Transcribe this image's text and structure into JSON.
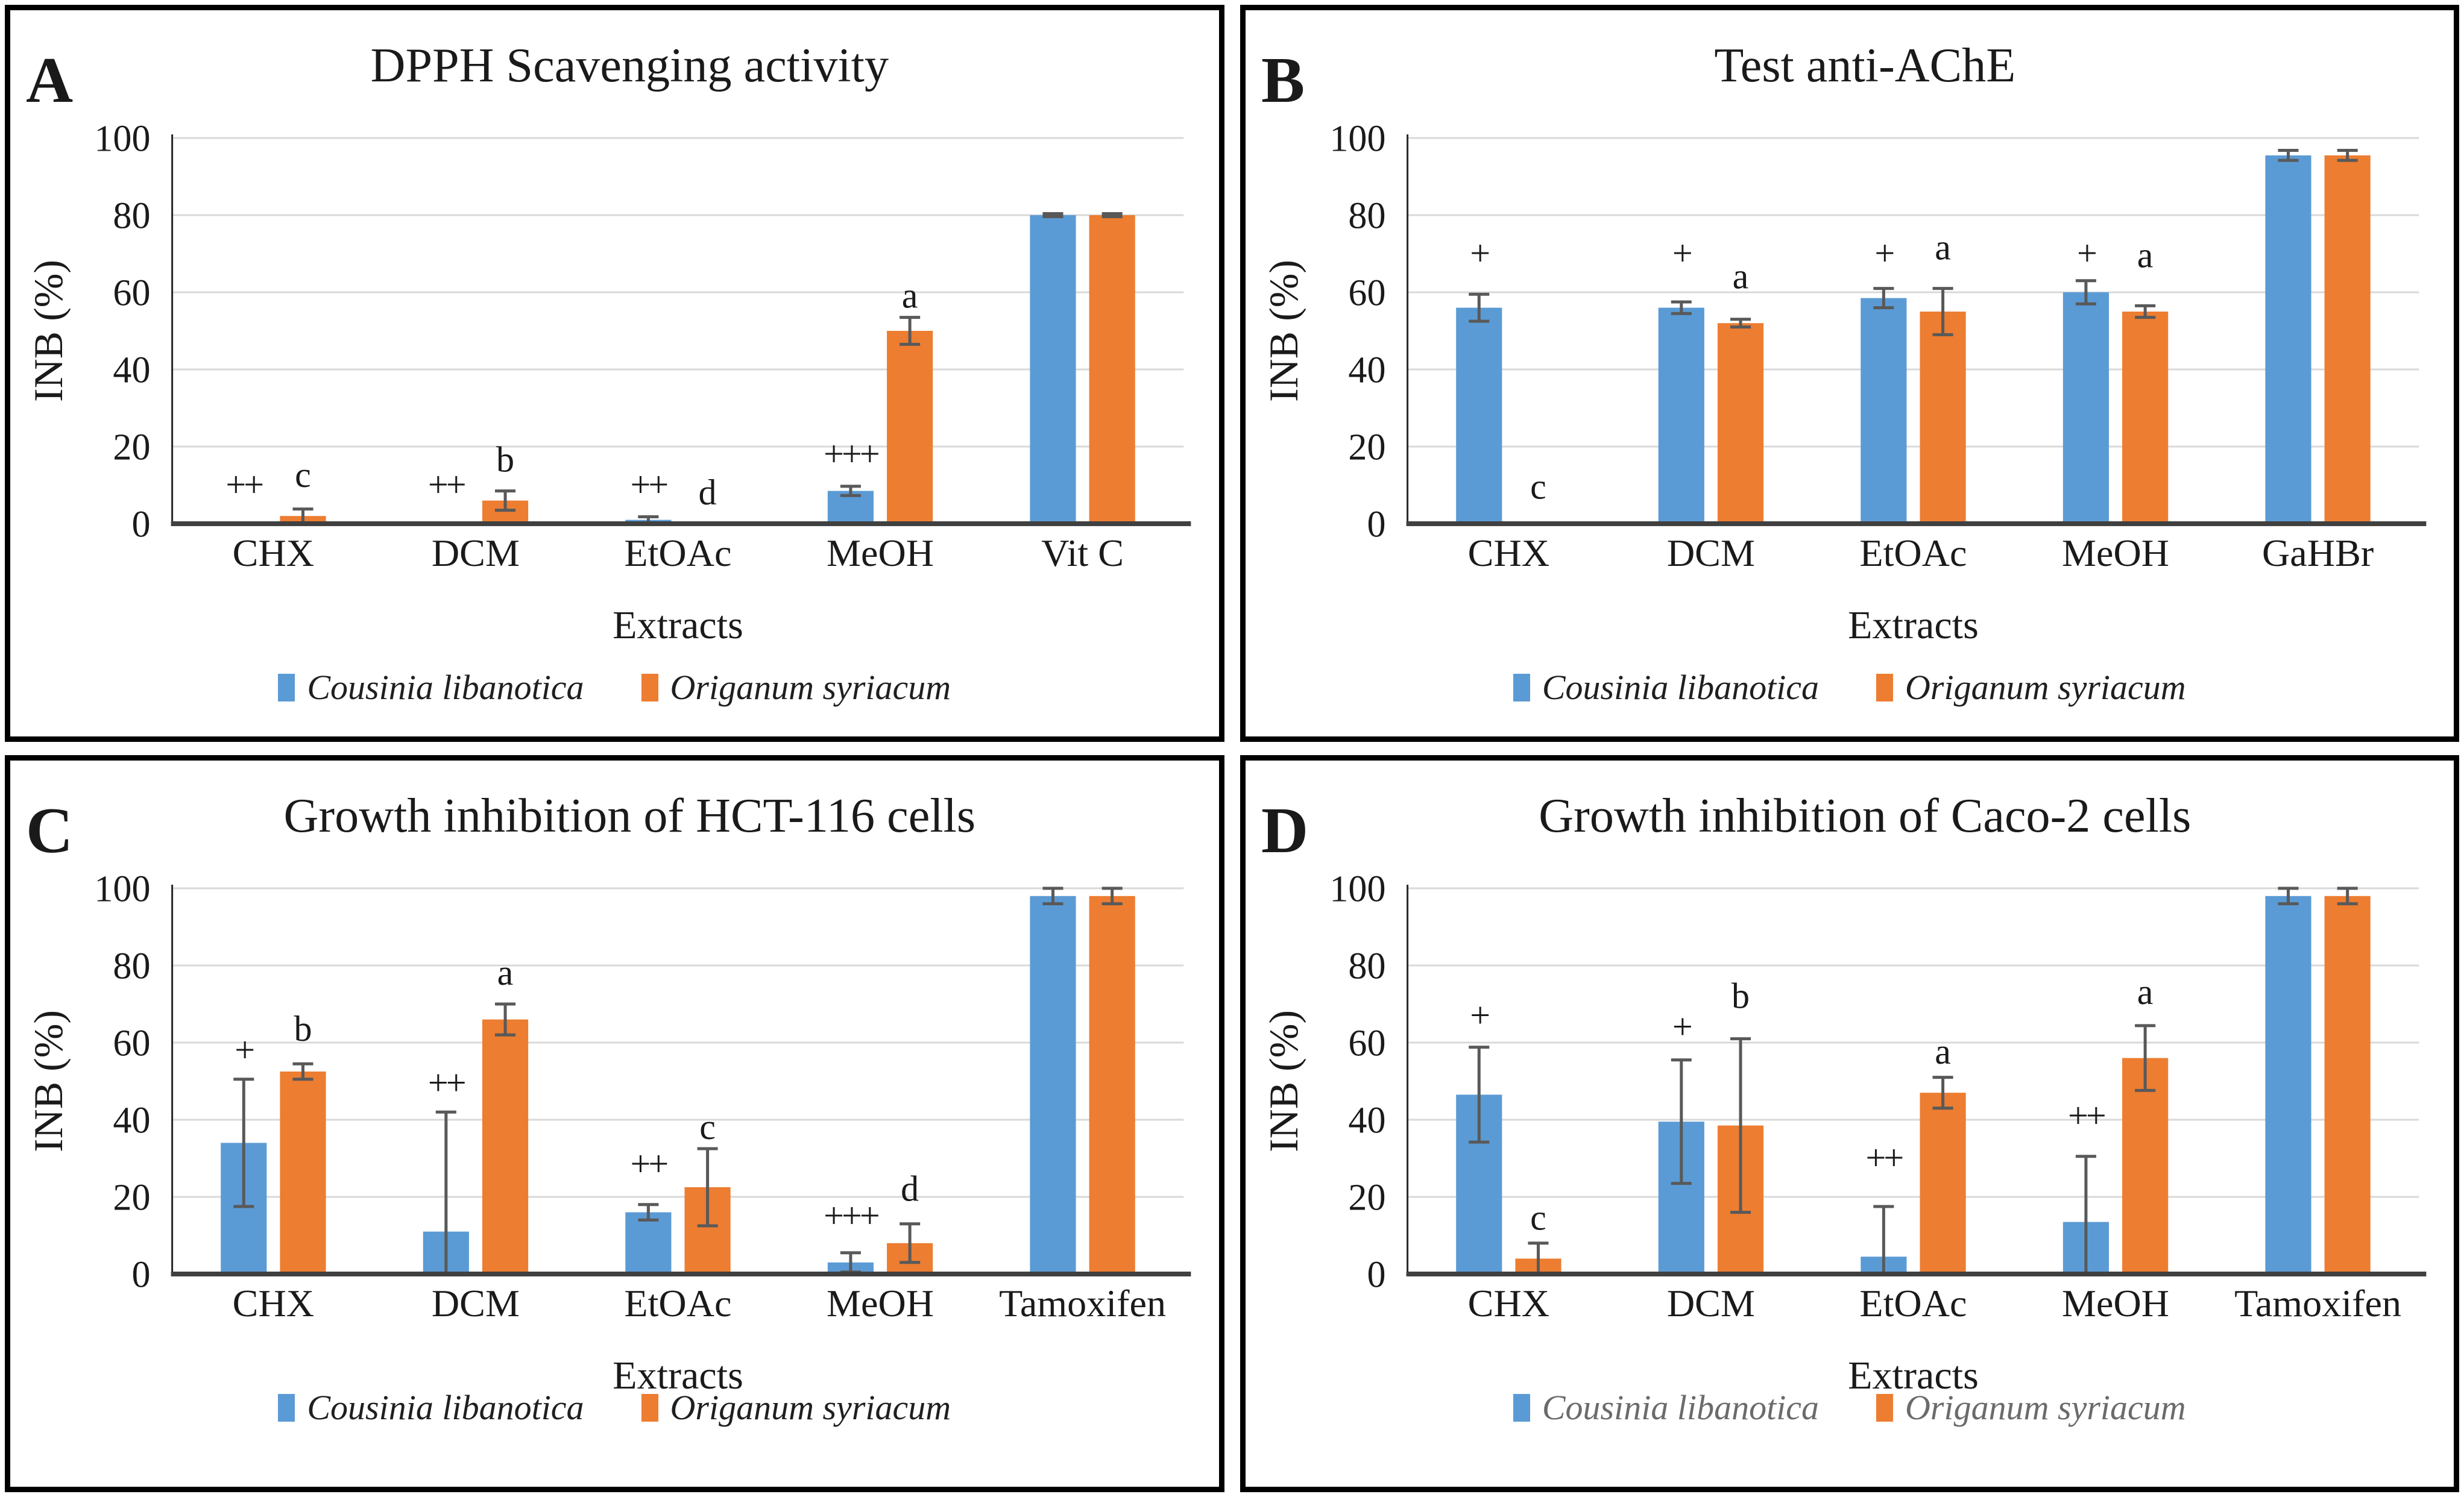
{
  "figure": {
    "background": "#ffffff",
    "panel_border_color": "#000000"
  },
  "colors": {
    "cousinia_blue": "#5B9BD5",
    "origanum_orange": "#ED7D31",
    "error_bar": "#595959",
    "gridline": "#D9D9D9",
    "axis_line": "#262626",
    "baseline": "#404040",
    "text": "#1a1a1a"
  },
  "chart_data": [
    {
      "type": "bar",
      "panel_label": "A",
      "title": "DPPH Scavenging activity",
      "xlabel": "Extracts",
      "ylabel": "INB (%)",
      "ylim": [
        0,
        100
      ],
      "yticks": [
        0,
        20,
        40,
        60,
        80,
        100
      ],
      "grid": "horizontal",
      "legend_position": "bottom",
      "legend_color": "#1f1f1f",
      "categories": [
        "CHX",
        "DCM",
        "EtOAc",
        "MeOH",
        "Vit C"
      ],
      "series": [
        {
          "name": "Cousinia libanotica",
          "color": "#5B9BD5",
          "values": [
            0,
            0,
            1,
            8.5,
            80
          ],
          "errors": [
            0,
            0,
            0.8,
            1.2,
            0.4
          ],
          "annotations": [
            {
              "text": "++",
              "y": 7
            },
            {
              "text": "++",
              "y": 7
            },
            {
              "text": "++",
              "y": 7
            },
            {
              "text": "+++",
              "y": 15
            },
            null
          ]
        },
        {
          "name": "Origanum syriacum",
          "color": "#ED7D31",
          "values": [
            2,
            6,
            0,
            50,
            80
          ],
          "errors": [
            1.8,
            2.5,
            0,
            3.5,
            0.4
          ],
          "annotations": [
            {
              "text": "c",
              "y": 9.5
            },
            {
              "text": "b",
              "y": 13.5
            },
            {
              "text": "d",
              "y": 5
            },
            {
              "text": "a",
              "y": 56
            },
            null
          ]
        }
      ]
    },
    {
      "type": "bar",
      "panel_label": "B",
      "title": "Test anti-AChE",
      "xlabel": "Extracts",
      "ylabel": "INB (%)",
      "ylim": [
        0,
        100
      ],
      "yticks": [
        0,
        20,
        40,
        60,
        80,
        100
      ],
      "grid": "horizontal",
      "legend_position": "bottom",
      "legend_color": "#1f1f1f",
      "categories": [
        "CHX",
        "DCM",
        "EtOAc",
        "MeOH",
        "GaHBr"
      ],
      "series": [
        {
          "name": "Cousinia libanotica",
          "color": "#5B9BD5",
          "values": [
            56,
            56,
            58.5,
            60,
            95.5
          ],
          "errors": [
            3.5,
            1.5,
            2.5,
            3,
            1.3
          ],
          "annotations": [
            {
              "text": "+",
              "y": 67
            },
            {
              "text": "+",
              "y": 67
            },
            {
              "text": "+",
              "y": 67
            },
            {
              "text": "+",
              "y": 67
            },
            null
          ]
        },
        {
          "name": "Origanum syriacum",
          "color": "#ED7D31",
          "values": [
            0,
            52,
            55,
            55,
            95.5
          ],
          "errors": [
            0,
            1,
            6,
            1.5,
            1.3
          ],
          "annotations": [
            {
              "text": "c",
              "y": 6.5
            },
            {
              "text": "a",
              "y": 61
            },
            {
              "text": "a",
              "y": 68.5
            },
            {
              "text": "a",
              "y": 66.5
            },
            null
          ]
        }
      ]
    },
    {
      "type": "bar",
      "panel_label": "C",
      "title": "Growth inhibition of HCT-116 cells",
      "xlabel": "Extracts",
      "ylabel": "INB (%)",
      "ylim": [
        0,
        100
      ],
      "yticks": [
        0,
        20,
        40,
        60,
        80,
        100
      ],
      "grid": "horizontal",
      "legend_position": "bottom",
      "legend_color": "#1f1f1f",
      "categories": [
        "CHX",
        "DCM",
        "EtOAc",
        "MeOH",
        "Tamoxifen"
      ],
      "series": [
        {
          "name": "Cousinia libanotica",
          "color": "#5B9BD5",
          "values": [
            34,
            11,
            16,
            3,
            98
          ],
          "errors": [
            16.5,
            31,
            2,
            2.5,
            2
          ],
          "annotations": [
            {
              "text": "+",
              "y": 55
            },
            {
              "text": "++",
              "y": 46.5
            },
            {
              "text": "++",
              "y": 25.5
            },
            {
              "text": "+++",
              "y": 12
            },
            null
          ]
        },
        {
          "name": "Origanum syriacum",
          "color": "#ED7D31",
          "values": [
            52.5,
            66,
            22.5,
            8,
            98
          ],
          "errors": [
            2,
            4,
            10,
            5,
            2
          ],
          "annotations": [
            {
              "text": "b",
              "y": 60.5
            },
            {
              "text": "a",
              "y": 75
            },
            {
              "text": "c",
              "y": 35
            },
            {
              "text": "d",
              "y": 19
            },
            null
          ]
        }
      ]
    },
    {
      "type": "bar",
      "panel_label": "D",
      "title": "Growth inhibition of Caco-2 cells",
      "xlabel": "Extracts",
      "ylabel": "INB (%)",
      "ylim": [
        0,
        100
      ],
      "yticks": [
        0,
        20,
        40,
        60,
        80,
        100
      ],
      "grid": "horizontal",
      "legend_position": "bottom",
      "legend_color": "#6b6b6b",
      "categories": [
        "CHX",
        "DCM",
        "EtOAc",
        "MeOH",
        "Tamoxifen"
      ],
      "series": [
        {
          "name": "Cousinia libanotica",
          "color": "#5B9BD5",
          "values": [
            46.5,
            39.5,
            4.5,
            13.5,
            98
          ],
          "errors": [
            12.3,
            16,
            13,
            17,
            2
          ],
          "annotations": [
            {
              "text": "+",
              "y": 64
            },
            {
              "text": "+",
              "y": 61
            },
            {
              "text": "++",
              "y": 27
            },
            {
              "text": "++",
              "y": 38
            },
            null
          ]
        },
        {
          "name": "Origanum syriacum",
          "color": "#ED7D31",
          "values": [
            4,
            38.5,
            47,
            56,
            98
          ],
          "errors": [
            4,
            22.5,
            4,
            8.4,
            2
          ],
          "annotations": [
            {
              "text": "c",
              "y": 11.5
            },
            {
              "text": "b",
              "y": 69
            },
            {
              "text": "a",
              "y": 54.5
            },
            {
              "text": "a",
              "y": 70
            },
            null
          ]
        }
      ]
    }
  ]
}
